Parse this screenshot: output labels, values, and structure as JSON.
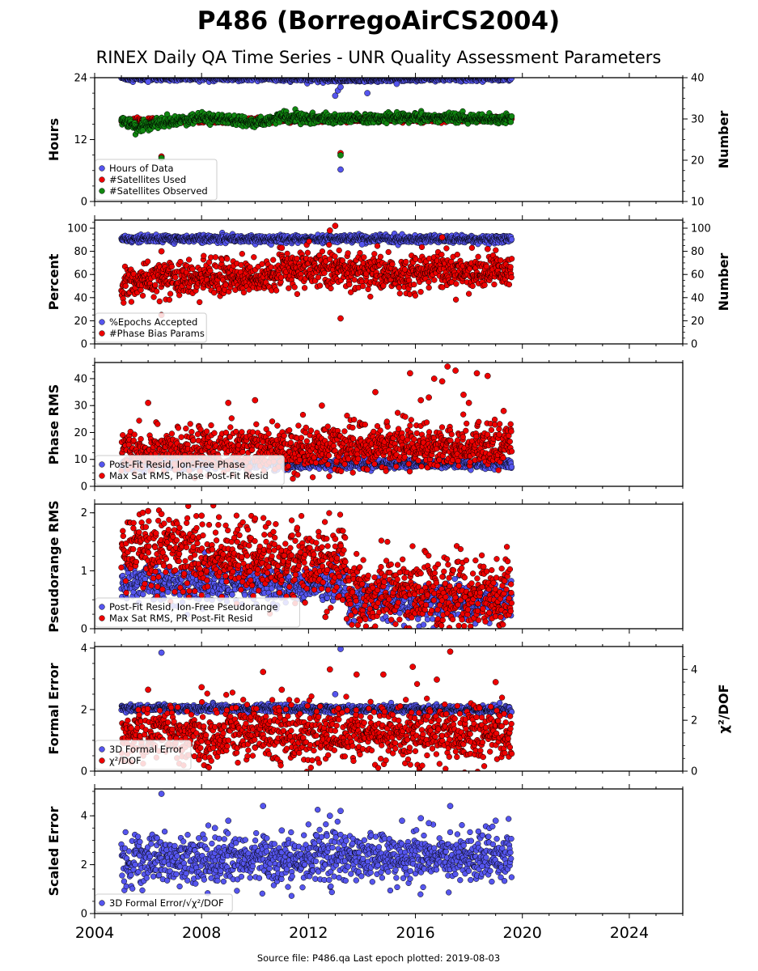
{
  "title": "P486 (BorregoAirCS2004)",
  "subtitle": "RINEX Daily QA Time Series - UNR Quality Assessment Parameters",
  "footer": "Source file: P486.qa Last epoch plotted: 2019-08-03",
  "colors": {
    "blue": "#5555ee",
    "red": "#ee0000",
    "green": "#118811",
    "edge": "#000000"
  },
  "chart_data": [
    {
      "type": "scatter",
      "id": "hours",
      "xlim": [
        2004,
        2026
      ],
      "x_ticks": [
        "2004",
        "2008",
        "2012",
        "2016",
        "2020",
        "2024"
      ],
      "ylabel": "Hours",
      "ylim": [
        0,
        24
      ],
      "y_ticks": [
        "0",
        "12",
        "24"
      ],
      "y2label": "Number",
      "y2lim": [
        10,
        40
      ],
      "y2_ticks": [
        "10",
        "20",
        "30",
        "40"
      ],
      "legend": [
        "Hours of Data",
        "#Satellites Used",
        "#Satellites Observed"
      ],
      "series": [
        {
          "name": "Hours of Data",
          "color": "blue",
          "axis": "left",
          "segments": [
            [
              2005.0,
              23.8
            ],
            [
              2006.5,
              23.9
            ],
            [
              2010.0,
              23.9
            ],
            [
              2013.0,
              23.6
            ],
            [
              2019.6,
              23.9
            ]
          ],
          "jitter": 0.25,
          "outliers": [
            [
              2013.0,
              20.5
            ],
            [
              2013.1,
              21.5
            ],
            [
              2013.2,
              22.2
            ],
            [
              2014.2,
              21.0
            ],
            [
              2015.3,
              22.8
            ],
            [
              2013.2,
              6.2
            ],
            [
              2006.0,
              23.2
            ]
          ]
        },
        {
          "name": "#Satellites Used",
          "color": "red",
          "axis": "right",
          "segments": [
            [
              2005.0,
              29.5
            ],
            [
              2019.6,
              30.0
            ]
          ],
          "jitter": 0.3,
          "outliers": [
            [
              2006.5,
              20.9
            ],
            [
              2013.2,
              21.7
            ],
            [
              2005.4,
              29.2
            ]
          ]
        },
        {
          "name": "#Satellites Observed",
          "color": "green",
          "axis": "right",
          "segments": [
            [
              2005.0,
              29.5
            ],
            [
              2005.6,
              28.0
            ],
            [
              2007.0,
              29.5
            ],
            [
              2008.0,
              30.3
            ],
            [
              2009.0,
              29.8
            ],
            [
              2010.0,
              29.0
            ],
            [
              2011.0,
              30.5
            ],
            [
              2013.0,
              30.0
            ],
            [
              2016.0,
              30.4
            ],
            [
              2019.6,
              30.0
            ]
          ],
          "jitter": 0.55,
          "outliers": [
            [
              2013.2,
              21.2
            ],
            [
              2006.5,
              20.5
            ],
            [
              2005.8,
              27.2
            ]
          ]
        }
      ]
    },
    {
      "type": "scatter",
      "id": "percent",
      "xlim": [
        2004,
        2026
      ],
      "x_ticks": [
        "2004",
        "2008",
        "2012",
        "2016",
        "2020",
        "2024"
      ],
      "ylabel": "Percent",
      "ylim": [
        0,
        107
      ],
      "y_ticks": [
        "0",
        "20",
        "40",
        "60",
        "80",
        "100"
      ],
      "y2label": "Number",
      "y2lim": [
        0,
        107
      ],
      "y2_ticks": [
        "0",
        "20",
        "40",
        "60",
        "80",
        "100"
      ],
      "legend": [
        "%Epochs Accepted",
        "#Phase Bias Params"
      ],
      "series": [
        {
          "name": "%Epochs Accepted",
          "color": "blue",
          "axis": "left",
          "segments": [
            [
              2005.0,
              91.0
            ],
            [
              2019.6,
              90.5
            ]
          ],
          "jitter": 1.6,
          "outliers": [
            [
              2014.0,
              86.0
            ]
          ]
        },
        {
          "name": "#Phase Bias Params",
          "color": "red",
          "axis": "right",
          "segments": [
            [
              2005.0,
              50.0
            ],
            [
              2006.0,
              56.0
            ],
            [
              2008.0,
              57.0
            ],
            [
              2010.5,
              57.0
            ],
            [
              2011.0,
              63.0
            ],
            [
              2013.0,
              66.0
            ],
            [
              2015.0,
              60.0
            ],
            [
              2019.6,
              62.0
            ]
          ],
          "jitter": 7.5,
          "outliers": [
            [
              2006.5,
              25.0
            ],
            [
              2013.2,
              22.0
            ],
            [
              2013.0,
              102.0
            ],
            [
              2012.8,
              98.0
            ],
            [
              2017.0,
              92.0
            ],
            [
              2011.0,
              83.0
            ],
            [
              2006.5,
              80.0
            ],
            [
              2018.7,
              82.0
            ]
          ]
        }
      ]
    },
    {
      "type": "scatter",
      "id": "phase",
      "xlim": [
        2004,
        2026
      ],
      "x_ticks": [
        "2004",
        "2008",
        "2012",
        "2016",
        "2020",
        "2024"
      ],
      "ylabel": "Phase RMS",
      "ylim": [
        0,
        46
      ],
      "y_ticks": [
        "0",
        "10",
        "20",
        "30",
        "40"
      ],
      "legend": [
        "Post-Fit Resid, Ion-Free Phase",
        "Max Sat RMS, Phase Post-Fit Resid"
      ],
      "series": [
        {
          "name": "Post-Fit Resid, Ion-Free Phase",
          "color": "blue",
          "axis": "left",
          "segments": [
            [
              2005.0,
              8.0
            ],
            [
              2019.6,
              8.5
            ]
          ],
          "jitter": 0.9,
          "outliers": []
        },
        {
          "name": "Max Sat RMS, Phase Post-Fit Resid",
          "color": "red",
          "axis": "left",
          "segments": [
            [
              2005.0,
              13.0
            ],
            [
              2010.0,
              14.0
            ],
            [
              2015.0,
              15.0
            ],
            [
              2019.6,
              15.0
            ]
          ],
          "jitter": 4.0,
          "outliers": [
            [
              2006.0,
              31.0
            ],
            [
              2009.0,
              31.0
            ],
            [
              2010.0,
              32.0
            ],
            [
              2012.5,
              30.0
            ],
            [
              2014.5,
              35.0
            ],
            [
              2015.8,
              42.0
            ],
            [
              2016.2,
              32.0
            ],
            [
              2016.5,
              33.0
            ],
            [
              2016.7,
              40.0
            ],
            [
              2017.0,
              39.0
            ],
            [
              2017.2,
              44.5
            ],
            [
              2017.5,
              43.0
            ],
            [
              2017.8,
              34.0
            ],
            [
              2018.0,
              31.0
            ],
            [
              2018.3,
              42.0
            ],
            [
              2018.7,
              41.0
            ],
            [
              2019.3,
              28.0
            ]
          ]
        }
      ]
    },
    {
      "type": "scatter",
      "id": "pseudorange",
      "xlim": [
        2004,
        2026
      ],
      "x_ticks": [
        "2004",
        "2008",
        "2012",
        "2016",
        "2020",
        "2024"
      ],
      "ylabel": "Pseudorange RMS",
      "ylim": [
        0,
        2.15
      ],
      "y_ticks": [
        "0",
        "1",
        "2"
      ],
      "legend": [
        "Post-Fit Resid, Ion-Free Pseudorange",
        "Max Sat RMS, PR Post-Fit Resid"
      ],
      "series": [
        {
          "name": "Post-Fit Resid, Ion-Free Pseudorange",
          "color": "blue",
          "axis": "left",
          "segments": [
            [
              2005.0,
              0.8
            ],
            [
              2013.4,
              0.75
            ],
            [
              2013.5,
              0.45
            ],
            [
              2019.6,
              0.45
            ]
          ],
          "jitter": 0.16,
          "outliers": [
            [
              2013.7,
              0.97
            ]
          ]
        },
        {
          "name": "Max Sat RMS, PR Post-Fit Resid",
          "color": "red",
          "axis": "left",
          "segments": [
            [
              2005.0,
              1.3
            ],
            [
              2008.0,
              1.3
            ],
            [
              2013.4,
              1.1
            ],
            [
              2013.5,
              0.62
            ],
            [
              2015.0,
              0.55
            ],
            [
              2019.6,
              0.56
            ]
          ],
          "jitter": 0.33,
          "outliers": [
            [
              2005.8,
              2.0
            ],
            [
              2006.0,
              2.03
            ],
            [
              2006.5,
              1.98
            ],
            [
              2008.0,
              1.95
            ],
            [
              2010.0,
              1.9
            ],
            [
              2013.0,
              1.55
            ]
          ]
        }
      ]
    },
    {
      "type": "scatter",
      "id": "formal",
      "xlim": [
        2004,
        2026
      ],
      "x_ticks": [
        "2004",
        "2008",
        "2012",
        "2016",
        "2020",
        "2024"
      ],
      "ylabel": "Formal Error",
      "ylim": [
        0,
        4.05
      ],
      "y_ticks": [
        "0",
        "2",
        "4"
      ],
      "y2label": "χ²/DOF",
      "y2lim": [
        0,
        4.9
      ],
      "y2_ticks": [
        "0",
        "2",
        "4"
      ],
      "legend": [
        "3D Formal Error",
        "χ²/DOF"
      ],
      "series": [
        {
          "name": "3D Formal Error",
          "color": "blue",
          "axis": "left",
          "segments": [
            [
              2005.0,
              2.05
            ],
            [
              2019.6,
              2.0
            ]
          ],
          "jitter": 0.06,
          "outliers": [
            [
              2006.5,
              3.85
            ],
            [
              2013.2,
              3.97
            ],
            [
              2013.0,
              2.5
            ]
          ]
        },
        {
          "name": "χ²/DOF",
          "color": "red",
          "axis": "right",
          "segments": [
            [
              2005.0,
              1.4
            ],
            [
              2019.6,
              1.5
            ]
          ],
          "jitter": 0.55,
          "outliers": [
            [
              2006.0,
              3.2
            ],
            [
              2008.0,
              3.3
            ],
            [
              2010.3,
              3.9
            ],
            [
              2011.0,
              3.2
            ],
            [
              2012.8,
              4.0
            ],
            [
              2013.8,
              3.8
            ],
            [
              2014.8,
              3.8
            ],
            [
              2015.9,
              4.1
            ],
            [
              2016.8,
              3.6
            ],
            [
              2017.3,
              4.7
            ],
            [
              2019.0,
              3.5
            ]
          ]
        }
      ]
    },
    {
      "type": "scatter",
      "id": "scaled",
      "xlim": [
        2004,
        2026
      ],
      "x_ticks": [
        "2004",
        "2008",
        "2012",
        "2016",
        "2020",
        "2024"
      ],
      "ylabel": "Scaled Error",
      "ylim": [
        0,
        5.1
      ],
      "y_ticks": [
        "0",
        "2",
        "4"
      ],
      "legend": [
        "3D Formal Error/√χ²/DOF"
      ],
      "series": [
        {
          "name": "3D Formal Error/√χ²/DOF",
          "color": "blue",
          "axis": "left",
          "segments": [
            [
              2005.0,
              2.2
            ],
            [
              2019.6,
              2.35
            ]
          ],
          "jitter": 0.5,
          "outliers": [
            [
              2006.5,
              4.9
            ],
            [
              2008.5,
              3.5
            ],
            [
              2009.0,
              3.8
            ],
            [
              2010.3,
              4.4
            ],
            [
              2011.0,
              3.4
            ],
            [
              2012.3,
              3.2
            ],
            [
              2012.8,
              4.0
            ],
            [
              2013.2,
              4.2
            ],
            [
              2015.5,
              3.8
            ],
            [
              2016.2,
              3.9
            ],
            [
              2016.5,
              3.7
            ],
            [
              2017.3,
              4.4
            ],
            [
              2019.0,
              3.8
            ]
          ]
        }
      ]
    }
  ]
}
